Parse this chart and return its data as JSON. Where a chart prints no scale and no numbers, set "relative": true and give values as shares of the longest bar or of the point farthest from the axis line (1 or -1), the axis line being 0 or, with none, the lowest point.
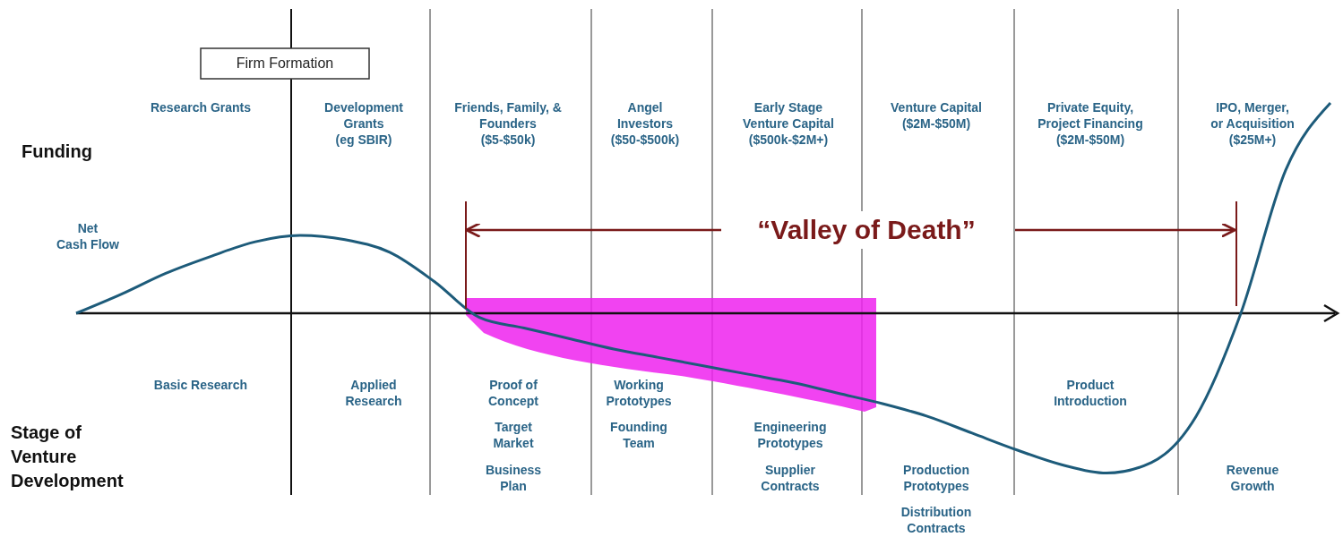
{
  "chart_data": {
    "type": "line",
    "relative": true,
    "categories": [
      null,
      null,
      null,
      null,
      null,
      null,
      null,
      null,
      null,
      null,
      null,
      null,
      null,
      null,
      null,
      null,
      null,
      null,
      null,
      null,
      null,
      null,
      null,
      null,
      null,
      null,
      null,
      null,
      null
    ],
    "series": [
      {
        "name": "Net\nCash Flow",
        "color": "#1d5b7a",
        "values": [
          0,
          0.09,
          0.19,
          0.27,
          0.34,
          0.37,
          0.35,
          0.29,
          0.15,
          -0.02,
          -0.07,
          -0.12,
          -0.17,
          -0.21,
          -0.25,
          -0.29,
          -0.33,
          -0.38,
          -0.43,
          -0.49,
          -0.57,
          -0.65,
          -0.72,
          -0.76,
          -0.71,
          -0.49,
          0,
          0.68,
          1
        ]
      }
    ],
    "annotations": [
      "Firm Formation",
      "Funding",
      "Stage of\nVenture\nDevelopment",
      "“Valley of Death”",
      "Research Grants",
      "Development\nGrants\n(eg SBIR)",
      "Friends, Family, &\nFounders\n($5-$50k)",
      "Angel\nInvestors\n($50-$500k)",
      "Early Stage\nVenture Capital\n($500k-$2M+)",
      "Venture Capital\n($2M-$50M)",
      "Private Equity,\nProject Financing\n($2M-$50M)",
      "IPO, Merger,\nor Acquisition\n($25M+)",
      "Basic Research",
      "Applied\nResearch",
      "Proof of\nConcept",
      "Target\nMarket",
      "Business\nPlan",
      "Working\nPrototypes",
      "Founding\nTeam",
      "Engineering\nPrototypes",
      "Supplier\nContracts",
      "Production\nPrototypes",
      "Distribution\nContracts",
      "Product\nIntroduction",
      "Revenue\nGrowth"
    ]
  }
}
